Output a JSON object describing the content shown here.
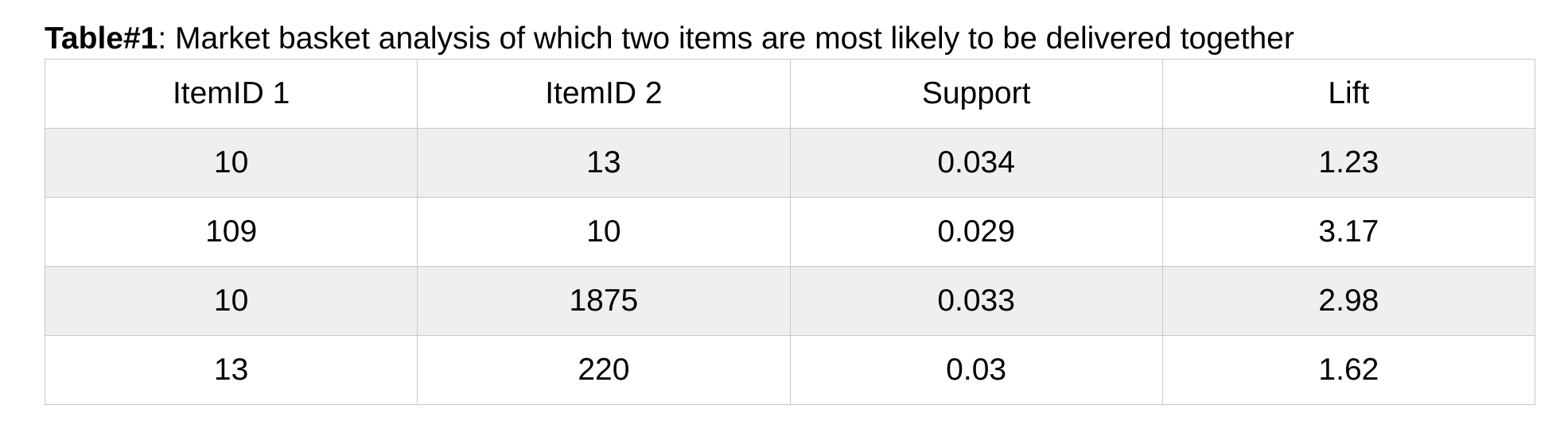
{
  "caption": {
    "label": "Table#1",
    "text": ": Market basket analysis of which two items are most likely to be delivered together"
  },
  "table": {
    "headers": [
      "ItemID 1",
      "ItemID 2",
      "Support",
      "Lift"
    ],
    "rows": [
      [
        "10",
        "13",
        "0.034",
        "1.23"
      ],
      [
        "109",
        "10",
        "0.029",
        "3.17"
      ],
      [
        "10",
        "1875",
        "0.033",
        "2.98"
      ],
      [
        "13",
        "220",
        "0.03",
        "1.62"
      ]
    ]
  },
  "colors": {
    "header_bg": "#ffffff",
    "stripe_bg": "#efefef",
    "border": "#c8c8c8"
  }
}
